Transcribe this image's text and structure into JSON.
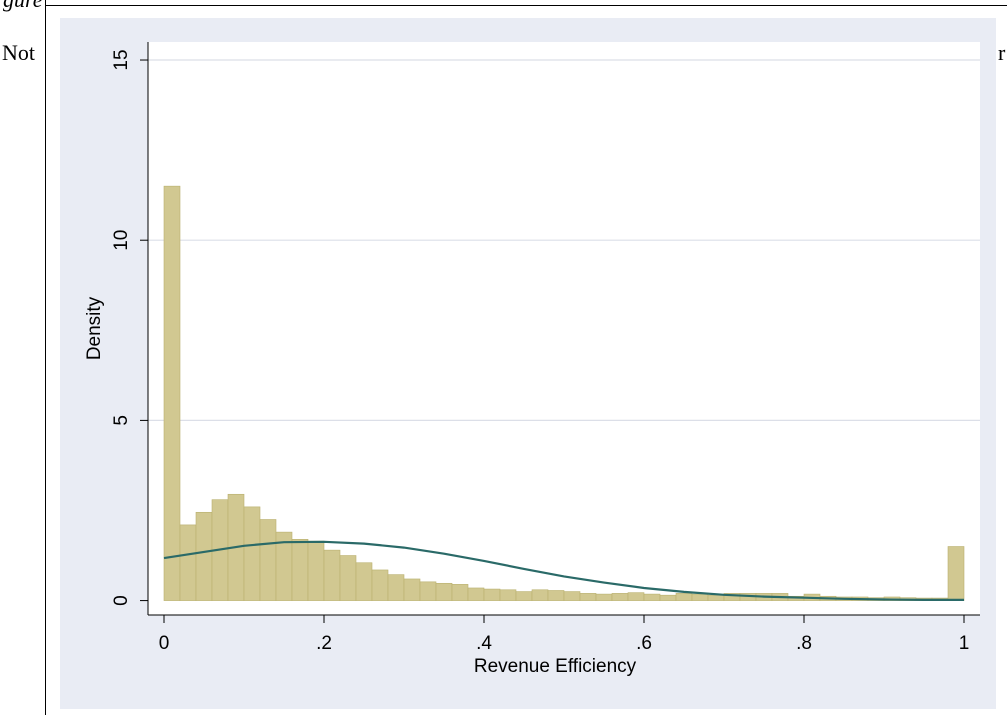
{
  "document": {
    "top_caption": "gure",
    "note_text": "Not",
    "note_tail": "r"
  },
  "colors": {
    "figure_background": "#e9ecf4",
    "plot_background": "#ffffff",
    "bar_fill": "#d1c891",
    "bar_stroke": "#b9b06e",
    "curve": "#2a6a68",
    "gridline": "#dcdfe8"
  },
  "chart_data": {
    "type": "bar",
    "title": "",
    "xlabel": "Revenue Efficiency",
    "ylabel": "Density",
    "xlim": [
      -0.02,
      1.02
    ],
    "ylim": [
      -0.4,
      15.5
    ],
    "x_ticks": [
      0,
      0.2,
      0.4,
      0.6,
      0.8,
      1
    ],
    "x_tick_labels": [
      "0",
      ".2",
      ".4",
      ".6",
      ".8",
      "1"
    ],
    "y_ticks": [
      0,
      5,
      10,
      15
    ],
    "y_tick_labels": [
      "0",
      "5",
      "10",
      "15"
    ],
    "grid": true,
    "bin_width": 0.02,
    "series": [
      {
        "kind": "histogram",
        "bin_starts": [
          0,
          0.02,
          0.04,
          0.06,
          0.08,
          0.1,
          0.12,
          0.14,
          0.16,
          0.18,
          0.2,
          0.22,
          0.24,
          0.26,
          0.28,
          0.3,
          0.32,
          0.34,
          0.36,
          0.38,
          0.4,
          0.42,
          0.44,
          0.46,
          0.48,
          0.5,
          0.52,
          0.54,
          0.56,
          0.58,
          0.6,
          0.62,
          0.64,
          0.66,
          0.68,
          0.7,
          0.72,
          0.74,
          0.76,
          0.78,
          0.8,
          0.82,
          0.84,
          0.86,
          0.88,
          0.9,
          0.92,
          0.94,
          0.96,
          0.98
        ],
        "values": [
          11.5,
          2.1,
          2.45,
          2.8,
          2.95,
          2.6,
          2.25,
          1.9,
          1.7,
          1.65,
          1.4,
          1.25,
          1.05,
          0.85,
          0.72,
          0.6,
          0.52,
          0.48,
          0.45,
          0.35,
          0.32,
          0.3,
          0.25,
          0.3,
          0.28,
          0.25,
          0.2,
          0.18,
          0.2,
          0.22,
          0.18,
          0.15,
          0.2,
          0.18,
          0.15,
          0.2,
          0.2,
          0.2,
          0.2,
          0.12,
          0.18,
          0.12,
          0.1,
          0.1,
          0.08,
          0.1,
          0.08,
          0.07,
          0.07,
          1.5
        ]
      },
      {
        "kind": "normal_density_curve",
        "x": [
          0,
          0.05,
          0.1,
          0.15,
          0.2,
          0.25,
          0.3,
          0.35,
          0.4,
          0.45,
          0.5,
          0.55,
          0.6,
          0.65,
          0.7,
          0.75,
          0.8,
          0.85,
          0.9,
          0.95,
          1.0
        ],
        "y": [
          1.18,
          1.35,
          1.52,
          1.62,
          1.63,
          1.58,
          1.47,
          1.3,
          1.1,
          0.88,
          0.67,
          0.5,
          0.35,
          0.24,
          0.16,
          0.11,
          0.08,
          0.05,
          0.03,
          0.02,
          0.02
        ]
      }
    ]
  }
}
